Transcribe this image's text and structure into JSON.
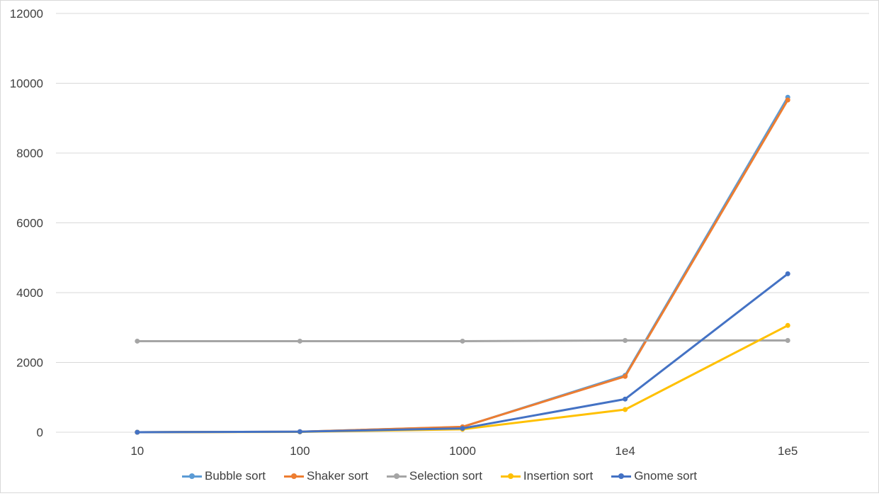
{
  "chart_data": {
    "type": "line",
    "title": "",
    "xlabel": "",
    "ylabel": "",
    "categories": [
      "10",
      "100",
      "1000",
      "1e4",
      "1e5"
    ],
    "ylim": [
      0,
      12000
    ],
    "yticks": [
      "0",
      "2000",
      "4000",
      "6000",
      "8000",
      "10000",
      "12000"
    ],
    "grid": true,
    "legend_position": "bottom",
    "series": [
      {
        "name": "Bubble sort",
        "color": "#5B9BD5",
        "values": [
          0,
          15,
          150,
          1630,
          9600
        ]
      },
      {
        "name": "Shaker sort",
        "color": "#ED7D31",
        "values": [
          0,
          15,
          155,
          1600,
          9520
        ]
      },
      {
        "name": "Selection sort",
        "color": "#A5A5A5",
        "values": [
          2610,
          2610,
          2610,
          2630,
          2630
        ]
      },
      {
        "name": "Insertion sort",
        "color": "#FFC000",
        "values": [
          0,
          10,
          85,
          650,
          3060
        ]
      },
      {
        "name": "Gnome sort",
        "color": "#4472C4",
        "values": [
          0,
          15,
          110,
          950,
          4540
        ]
      }
    ]
  }
}
